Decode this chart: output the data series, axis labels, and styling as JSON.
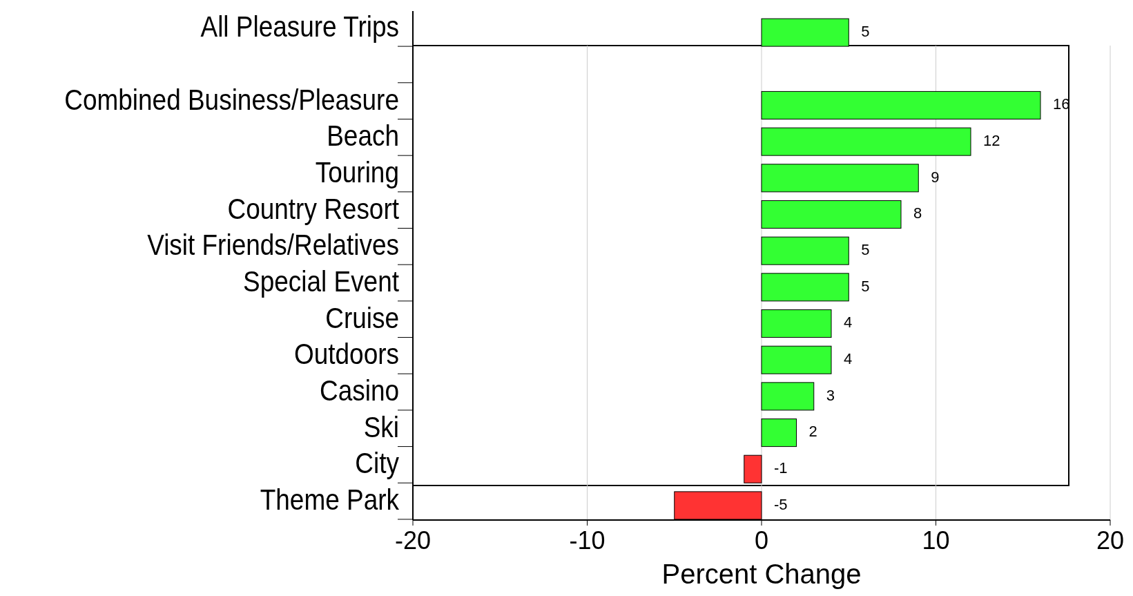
{
  "chart_data": {
    "type": "bar",
    "orientation": "horizontal",
    "xlabel": "Percent Change",
    "categories": [
      "All Pleasure Trips",
      null,
      "Combined Business/Pleasure",
      "Beach",
      "Touring",
      "Country Resort",
      "Visit Friends/Relatives",
      "Special Event",
      "Cruise",
      "Outdoors",
      "Casino",
      "Ski",
      "City",
      "Theme Park"
    ],
    "values": [
      5,
      null,
      16,
      12,
      9,
      8,
      5,
      5,
      4,
      4,
      3,
      2,
      -1,
      -5
    ],
    "colors": [
      "#33ff33",
      null,
      "#33ff33",
      "#33ff33",
      "#33ff33",
      "#33ff33",
      "#33ff33",
      "#33ff33",
      "#33ff33",
      "#33ff33",
      "#33ff33",
      "#33ff33",
      "#ff3333",
      "#ff3333"
    ],
    "xlim": [
      -20,
      20
    ],
    "xticks": [
      -20,
      -10,
      0,
      10,
      20
    ],
    "grid": "x",
    "data_labels": true
  }
}
